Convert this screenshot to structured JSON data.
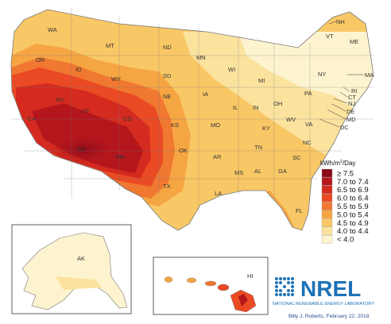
{
  "map": {
    "legend": {
      "title_main": "kWh/m",
      "title_sup": "2",
      "title_rest": "/Day",
      "entries": [
        {
          "label": "≥ 7.5",
          "color": "#8a0a1a"
        },
        {
          "label": "7.0 to 7.4",
          "color": "#b4161c"
        },
        {
          "label": "6.5 to 6.9",
          "color": "#d42a1f"
        },
        {
          "label": "6.0 to 6.4",
          "color": "#ea4a24"
        },
        {
          "label": "5.5 to 5.9",
          "color": "#f07831"
        },
        {
          "label": "5.0 to 5.4",
          "color": "#f6a543"
        },
        {
          "label": "4.5 to 4.9",
          "color": "#f9c866"
        },
        {
          "label": "4.0 to 4.4",
          "color": "#fbe39e"
        },
        {
          "label": "< 4.0",
          "color": "#fdf3cf"
        }
      ]
    },
    "states": {
      "WA": "WA",
      "OR": "OR",
      "CA": "CA",
      "ID": "ID",
      "NV": "NV",
      "MT": "MT",
      "WY": "WY",
      "UT": "UT",
      "AZ": "AZ",
      "CO": "CO",
      "NM": "NM",
      "ND": "ND",
      "SD": "SD",
      "NE": "NE",
      "KS": "KS",
      "OK": "OK",
      "TX": "TX",
      "MN": "MN",
      "IA": "IA",
      "MO": "MO",
      "AR": "AR",
      "LA": "LA",
      "WI": "WI",
      "IL": "IL",
      "MI": "MI",
      "IN": "IN",
      "OH": "OH",
      "KY": "KY",
      "TN": "TN",
      "MS": "MS",
      "AL": "AL",
      "GA": "GA",
      "FL": "FL",
      "SC": "SC",
      "NC": "NC",
      "VA": "VA",
      "WV": "WV",
      "PA": "PA",
      "NY": "NY",
      "VT": "VT",
      "NH": "NH",
      "ME": "ME",
      "MA": "MA",
      "RI": "RI",
      "CT": "CT",
      "NJ": "NJ",
      "DE": "DE",
      "MD": "MD",
      "DC": "DC",
      "AK": "AK",
      "HI": "HI"
    },
    "logo": {
      "name": "NREL",
      "subtitle": "NATIONAL RENEWABLE ENERGY LABORATORY"
    },
    "credit": "Billy J. Roberts, February 22, 2018",
    "colors": {
      "accent": "#1e73b8",
      "border": "#777777"
    }
  }
}
